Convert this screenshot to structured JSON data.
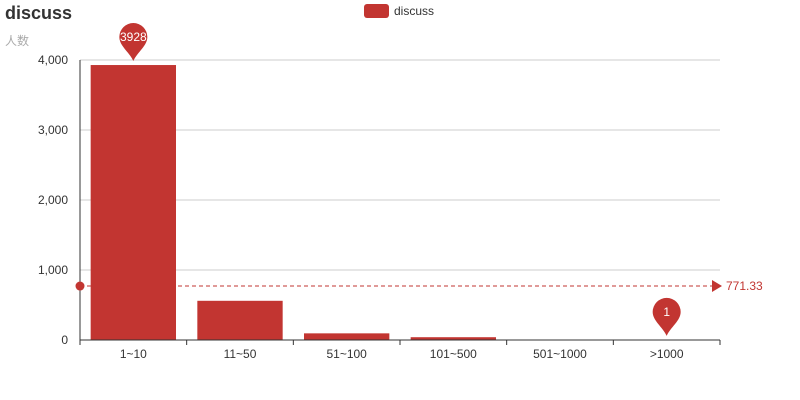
{
  "chart_data": {
    "type": "bar",
    "title": "discuss",
    "subtitle": "人数",
    "legend": {
      "position": "top-center",
      "entries": [
        "discuss"
      ]
    },
    "categories": [
      "1~10",
      "11~50",
      "51~100",
      "101~500",
      "501~1000",
      ">1000"
    ],
    "series": [
      {
        "name": "discuss",
        "values": [
          3928,
          560,
          95,
          40,
          5,
          1
        ],
        "color": "#c23531"
      }
    ],
    "y_ticks": [
      "0",
      "1,000",
      "2,000",
      "3,000",
      "4,000"
    ],
    "ylim": [
      0,
      4000
    ],
    "grid": true,
    "mark_points": [
      {
        "label": "3928",
        "category": "1~10",
        "value": 3928
      },
      {
        "label": "1",
        "category": ">1000",
        "value": 1
      }
    ],
    "mark_line": {
      "label": "771.33",
      "value": 771.33,
      "style": "dashed"
    }
  }
}
